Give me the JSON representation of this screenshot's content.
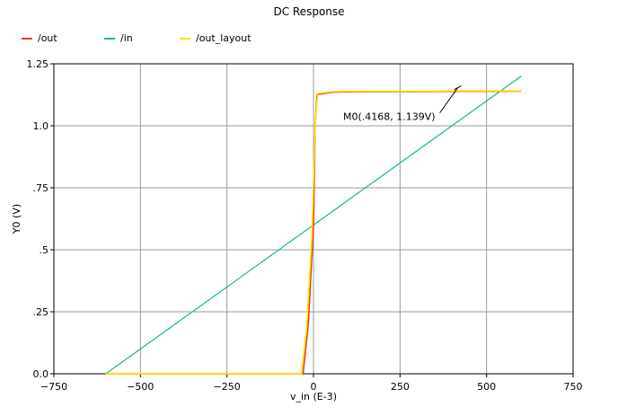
{
  "chart_data": {
    "type": "line",
    "title": "DC Response",
    "xlabel": "v_in (E-3)",
    "ylabel": "Y0 (V)",
    "xlim": [
      -750,
      750
    ],
    "ylim": [
      0,
      1.25
    ],
    "x_ticks": [
      -750,
      -500,
      -250,
      0,
      250,
      500,
      750
    ],
    "x_tick_labels": [
      "−750",
      "−500",
      "−250",
      "0",
      "250",
      "500",
      "750"
    ],
    "y_ticks": [
      0,
      0.25,
      0.5,
      0.75,
      1.0,
      1.25
    ],
    "y_tick_labels": [
      "0.0",
      ".25",
      ".5",
      ".75",
      "1.0",
      "1.25"
    ],
    "grid": true,
    "legend_position": "top-left",
    "series": [
      {
        "name": "/out",
        "color": "#e8382a",
        "x": [
          -600,
          -30,
          -15,
          0,
          5,
          10,
          50,
          100,
          200,
          300,
          400,
          500,
          600
        ],
        "y": [
          0,
          0,
          0.2,
          0.6,
          1.0,
          1.125,
          1.135,
          1.137,
          1.138,
          1.138,
          1.139,
          1.139,
          1.14
        ]
      },
      {
        "name": "/in",
        "color": "#16b39a",
        "x": [
          -600,
          600
        ],
        "y": [
          0,
          1.2
        ]
      },
      {
        "name": "/out_layout",
        "color": "#ffe600",
        "x": [
          -600,
          -35,
          -20,
          -5,
          5,
          12,
          50,
          100,
          200,
          300,
          400,
          500,
          600
        ],
        "y": [
          0,
          0,
          0.18,
          0.55,
          1.0,
          1.13,
          1.138,
          1.139,
          1.14,
          1.14,
          1.141,
          1.141,
          1.141
        ]
      }
    ],
    "annotations": [
      {
        "text": "M0(.4168, 1.139V)",
        "x": 416.8,
        "y": 1.139
      }
    ]
  }
}
